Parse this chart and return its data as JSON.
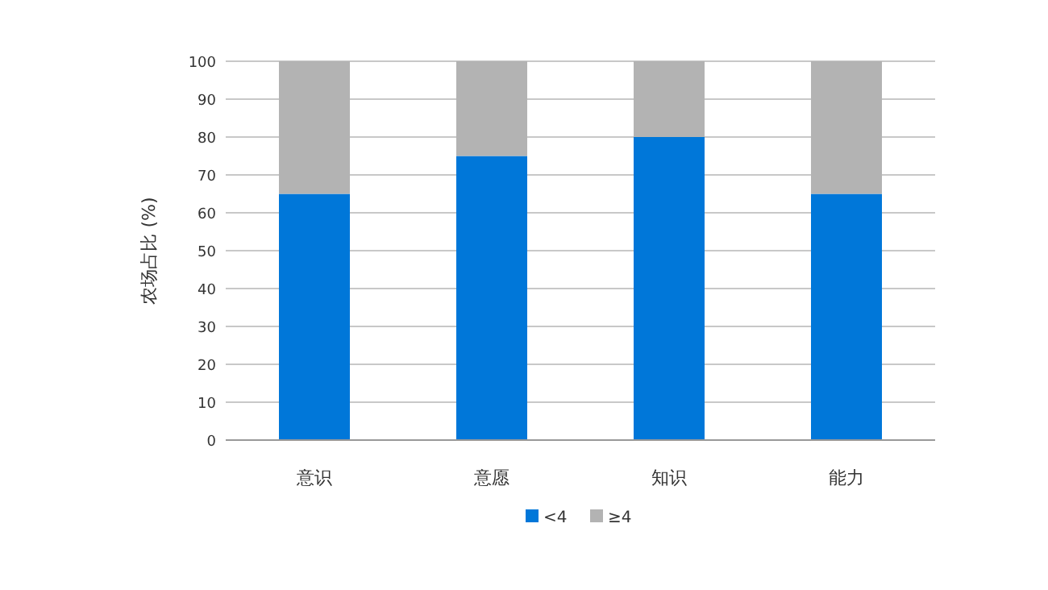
{
  "chart_data": {
    "type": "bar",
    "stacked": true,
    "ylabel": "农场占比 (%)",
    "categories": [
      "意识",
      "意愿",
      "知识",
      "能力"
    ],
    "series": [
      {
        "name": "<4",
        "color": "#0077d9",
        "values": [
          65,
          75,
          80,
          65
        ]
      },
      {
        "name": "≥4",
        "color": "#b3b3b3",
        "values": [
          35,
          25,
          20,
          35
        ]
      }
    ],
    "ylim": [
      0,
      100
    ],
    "yticks": [
      0,
      10,
      20,
      30,
      40,
      50,
      60,
      70,
      80,
      90,
      100
    ],
    "grid": "y",
    "legend": "bottom"
  }
}
